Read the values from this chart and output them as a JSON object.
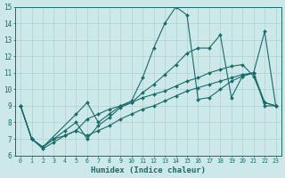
{
  "xlabel": "Humidex (Indice chaleur)",
  "ylabel": "",
  "xlim": [
    -0.5,
    23.5
  ],
  "ylim": [
    6,
    15
  ],
  "xticks": [
    0,
    1,
    2,
    3,
    4,
    5,
    6,
    7,
    8,
    9,
    10,
    11,
    12,
    13,
    14,
    15,
    16,
    17,
    18,
    19,
    20,
    21,
    22,
    23
  ],
  "yticks": [
    6,
    7,
    8,
    9,
    10,
    11,
    12,
    13,
    14,
    15
  ],
  "bg_color": "#cce8e8",
  "line_color": "#1a6b6b",
  "grid_color": "#b0d0d0",
  "series": [
    {
      "comment": "volatile spike line: 0->9, 1->7, 2->6.5, 5->8.5, 6->9.2, 7->8, 8->8.5, 9->9, 10->9.3, 11->10.7, 12->12.5, 13->14, 14->15, 15->14.5, 16->9.4, 17->9.5, 18->10, 19->10.5, 20->10.8, 21->11, 22->9.2, 23->9",
      "x": [
        0,
        1,
        2,
        5,
        6,
        7,
        8,
        9,
        10,
        11,
        12,
        13,
        14,
        15,
        16,
        17,
        18,
        19,
        20,
        21,
        22,
        23
      ],
      "y": [
        9,
        7,
        6.5,
        8.5,
        9.2,
        8,
        8.5,
        9,
        9.3,
        10.7,
        12.5,
        14,
        15,
        14.5,
        9.4,
        9.5,
        10,
        10.5,
        10.8,
        11,
        9.2,
        9
      ]
    },
    {
      "x": [
        0,
        1,
        2,
        3,
        4,
        5,
        6,
        7,
        8,
        9,
        10,
        11,
        12,
        13,
        14,
        15,
        16,
        17,
        18,
        19,
        20,
        21,
        22,
        23
      ],
      "y": [
        9,
        7,
        6.5,
        7,
        7.5,
        8,
        7,
        7.8,
        8.3,
        8.9,
        9.2,
        9.8,
        10.3,
        10.9,
        11.5,
        12.2,
        12.5,
        12.5,
        13.3,
        9.5,
        10.8,
        11,
        13.5,
        9
      ]
    },
    {
      "x": [
        0,
        1,
        2,
        3,
        4,
        5,
        6,
        7,
        8,
        9,
        10,
        11,
        12,
        13,
        14,
        15,
        16,
        17,
        18,
        19,
        20,
        21,
        22,
        23
      ],
      "y": [
        9,
        7,
        6.5,
        7,
        7.2,
        7.5,
        8.2,
        8.5,
        8.8,
        9.0,
        9.2,
        9.5,
        9.7,
        9.9,
        10.2,
        10.5,
        10.7,
        11.0,
        11.2,
        11.4,
        11.5,
        10.8,
        9.2,
        9
      ]
    },
    {
      "x": [
        0,
        1,
        2,
        3,
        4,
        5,
        6,
        7,
        8,
        9,
        10,
        11,
        12,
        13,
        14,
        15,
        16,
        17,
        18,
        19,
        20,
        21,
        22,
        23
      ],
      "y": [
        9,
        7,
        6.4,
        6.8,
        7.2,
        7.5,
        7.2,
        7.5,
        7.8,
        8.2,
        8.5,
        8.8,
        9.0,
        9.3,
        9.6,
        9.9,
        10.1,
        10.3,
        10.5,
        10.7,
        10.9,
        11.0,
        9,
        9
      ]
    }
  ]
}
